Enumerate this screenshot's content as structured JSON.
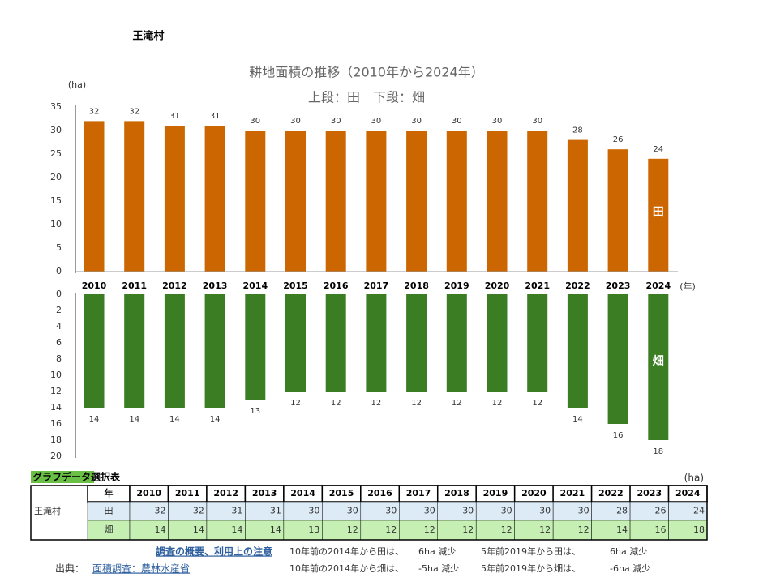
{
  "header": {
    "title": "王滝村"
  },
  "chart_data": [
    {
      "type": "bar",
      "title": "耕地面積の推移（2010年から2024年）",
      "subtitle": "上段：田　下段：畑",
      "ylabel": "(ha)",
      "xlabel": "(年)",
      "categories": [
        "2010",
        "2011",
        "2012",
        "2013",
        "2014",
        "2015",
        "2016",
        "2017",
        "2018",
        "2019",
        "2020",
        "2021",
        "2022",
        "2023",
        "2024"
      ],
      "series": [
        {
          "name": "田",
          "color": "#cc6600",
          "values": [
            32,
            32,
            31,
            31,
            30,
            30,
            30,
            30,
            30,
            30,
            30,
            30,
            28,
            26,
            24
          ]
        }
      ],
      "ylim": [
        0,
        35
      ],
      "yticks": [
        0,
        5,
        10,
        15,
        20,
        25,
        30,
        35
      ],
      "inverted": false
    },
    {
      "type": "bar",
      "series": [
        {
          "name": "畑",
          "color": "#3b7d23",
          "values": [
            14,
            14,
            14,
            14,
            13,
            12,
            12,
            12,
            12,
            12,
            12,
            12,
            14,
            16,
            18
          ]
        }
      ],
      "ylim": [
        0,
        20
      ],
      "yticks": [
        0,
        2,
        4,
        6,
        8,
        10,
        12,
        14,
        16,
        18,
        20
      ],
      "inverted": true
    }
  ],
  "table": {
    "title": "グラフデータ選択表",
    "unit": "(ha)",
    "place": "王滝村",
    "header": [
      "年",
      "2010",
      "2011",
      "2012",
      "2013",
      "2014",
      "2015",
      "2016",
      "2017",
      "2018",
      "2019",
      "2020",
      "2021",
      "2022",
      "2023",
      "2024"
    ],
    "rows": [
      [
        "田",
        "32",
        "32",
        "31",
        "31",
        "30",
        "30",
        "30",
        "30",
        "30",
        "30",
        "30",
        "30",
        "28",
        "26",
        "24"
      ],
      [
        "畑",
        "14",
        "14",
        "14",
        "14",
        "13",
        "12",
        "12",
        "12",
        "12",
        "12",
        "12",
        "12",
        "14",
        "16",
        "18"
      ]
    ]
  },
  "notes": {
    "link": "調査の概要、利用上の注意",
    "source_label": "出典：",
    "source": "面積調査：農林水産省",
    "lines": [
      [
        "10年前の2014年から田は、",
        "6ha 減少",
        "5年前2019年から田は、",
        "6ha 減少"
      ],
      [
        "10年前の2014年から畑は、",
        "-5ha 減少",
        "5年前2019年から畑は、",
        "-6ha 減少"
      ]
    ]
  }
}
